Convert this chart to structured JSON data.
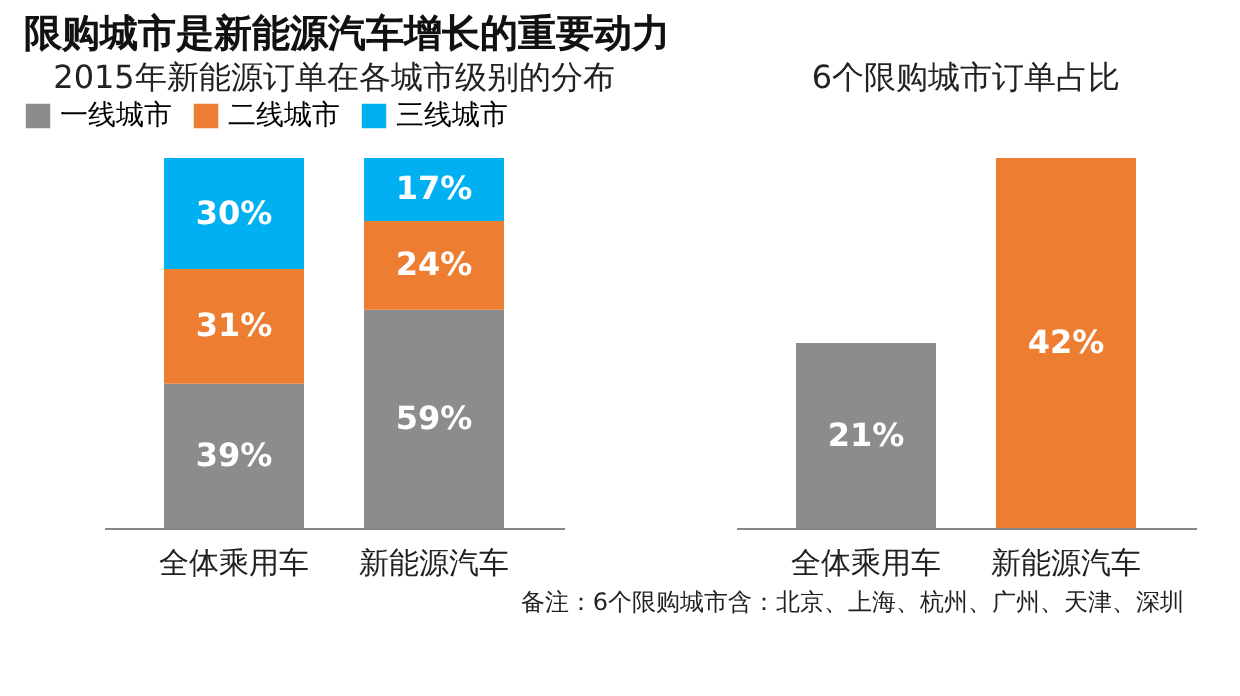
{
  "chart_data": [
    {
      "type": "bar",
      "title": "限购城市是新能源汽车增长的重要动力",
      "subtitle": "2015年新能源订单在各城市级别的分布",
      "categories": [
        "全体乘用车",
        "新能源汽车"
      ],
      "stacked": true,
      "legend": "top",
      "tick_labels": "x",
      "grid": false,
      "series": [
        {
          "name": "一线城市",
          "color": "#8c8c8c",
          "values": [
            39,
            59
          ],
          "value_labels": [
            "39%",
            "59%"
          ]
        },
        {
          "name": "二线城市",
          "color": "#ed7d31",
          "values": [
            31,
            24
          ],
          "value_labels": [
            "31%",
            "24%"
          ]
        },
        {
          "name": "三线城市",
          "color": "#00b0f0",
          "values": [
            30,
            17
          ],
          "value_labels": [
            "30%",
            "17%"
          ]
        }
      ]
    },
    {
      "type": "bar",
      "title": "6个限购城市订单占比",
      "categories": [
        "全体乘用车",
        "新能源汽车"
      ],
      "values": [
        21,
        42
      ],
      "value_labels": [
        "21%",
        "42%"
      ],
      "colors": [
        "#8c8c8c",
        "#ed7d31"
      ],
      "tick_labels": "x",
      "grid": false,
      "legend": false,
      "annotations": [
        "备注：6个限购城市含：北京、上海、杭州、广州、天津、深圳"
      ]
    }
  ]
}
